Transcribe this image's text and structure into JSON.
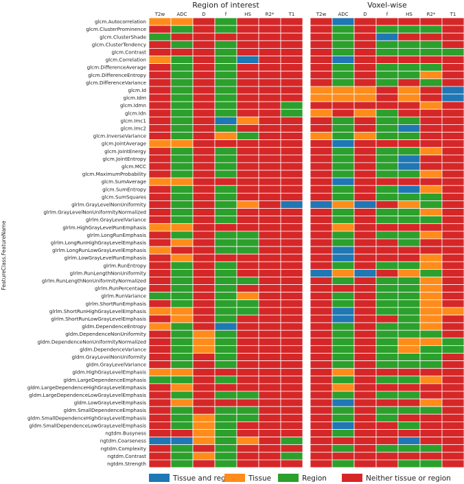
{
  "chart_data": {
    "type": "heatmap",
    "ylabel": "FeatureClass.FeatureName",
    "panels": [
      {
        "title": "Region of interest",
        "columns": [
          "T2w",
          "ADC",
          "D",
          "f",
          "HS",
          "R2*",
          "T1"
        ]
      },
      {
        "title": "Voxel-wise",
        "columns": [
          "T2w",
          "ADC",
          "D",
          "f",
          "HS",
          "R2*",
          "T1"
        ]
      }
    ],
    "legend": [
      {
        "code": "B",
        "label": "Tissue and region",
        "color": "#1f77b4"
      },
      {
        "code": "O",
        "label": "Tissue",
        "color": "#ff8c1a"
      },
      {
        "code": "G",
        "label": "Region",
        "color": "#2ca02c"
      },
      {
        "code": "R",
        "label": "Neither tissue or region",
        "color": "#d62728"
      }
    ],
    "rows": [
      {
        "feature": "glcm.Autocorrelation",
        "roi": "OORGRRR",
        "voxel": "RBRRRRR"
      },
      {
        "feature": "glcm.ClusterProminence",
        "roi": "RGRGRRR",
        "voxel": "RGRGGGR"
      },
      {
        "feature": "glcm.ClusterShade",
        "roi": "GRRRRRR",
        "voxel": "RGRBRRR"
      },
      {
        "feature": "glcm.ClusterTendency",
        "roi": "RGRGRRR",
        "voxel": "RGRGGGR"
      },
      {
        "feature": "glcm.Contrast",
        "roi": "RRRGRRR",
        "voxel": "RGRGGGG"
      },
      {
        "feature": "glcm.Correlation",
        "roi": "OGRGBRR",
        "voxel": "RBRRRRR"
      },
      {
        "feature": "glcm.DifferenceAverage",
        "roi": "RGRGRRR",
        "voxel": "RGRGGGR"
      },
      {
        "feature": "glcm.DifferenceEntropy",
        "roi": "RGRGRRR",
        "voxel": "RGRGGOR"
      },
      {
        "feature": "glcm.DifferenceVariance",
        "roi": "RGRGRRR",
        "voxel": "RGRGRGR"
      },
      {
        "feature": "glcm.Id",
        "roi": "RGRGRRR",
        "voxel": "OOORORB"
      },
      {
        "feature": "glcm.Idm",
        "roi": "RGRGRRR",
        "voxel": "OOORORB"
      },
      {
        "feature": "glcm.Idmn",
        "roi": "RGRGRRG",
        "voxel": "RRRRROR"
      },
      {
        "feature": "glcm.Idn",
        "roi": "RGRGRRG",
        "voxel": "OROGRRR"
      },
      {
        "feature": "glcm.Imc1",
        "roi": "RGRBORR",
        "voxel": "RGRGGRR"
      },
      {
        "feature": "glcm.Imc2",
        "roi": "RGRGRRR",
        "voxel": "RGRGBRR"
      },
      {
        "feature": "glcm.InverseVariance",
        "roi": "RGROGRR",
        "voxel": "OGOGGRR"
      },
      {
        "feature": "glcm.JointAverage",
        "roi": "OORRRRR",
        "voxel": "RBRRRRR"
      },
      {
        "feature": "glcm.JointEnergy",
        "roi": "RGRGRRR",
        "voxel": "RGRGGOR"
      },
      {
        "feature": "glcm.JointEntropy",
        "roi": "RGRGRRR",
        "voxel": "RGRGBRR"
      },
      {
        "feature": "glcm.MCC",
        "roi": "RGRGRRR",
        "voxel": "RGRGBRR"
      },
      {
        "feature": "glcm.MaximumProbability",
        "roi": "RGRGRRR",
        "voxel": "RGRGGOR"
      },
      {
        "feature": "glcm.SumAverage",
        "roi": "OORRRRR",
        "voxel": "RBRRRRR"
      },
      {
        "feature": "glcm.SumEntropy",
        "roi": "RGRGRRR",
        "voxel": "RGRGBOR"
      },
      {
        "feature": "glcm.SumSquares",
        "roi": "RGRGRRR",
        "voxel": "RGRGGGR"
      },
      {
        "feature": "glrlm.GrayLevelNonUniformity",
        "roi": "RGRGORB",
        "voxel": "BOBROGR"
      },
      {
        "feature": "glrlm.GrayLevelNonUniformityNormalized",
        "roi": "RGRGRRR",
        "voxel": "RGRGGOR"
      },
      {
        "feature": "glrlm.GrayLevelVariance",
        "roi": "RGRGRRR",
        "voxel": "RGRGGGR"
      },
      {
        "feature": "glrlm.HighGrayLevelRunEmphasis",
        "roi": "OORRRRR",
        "voxel": "RORRRRR"
      },
      {
        "feature": "glrlm.LongRunEmphasis",
        "roi": "RGRGGRR",
        "voxel": "RGRGGOR"
      },
      {
        "feature": "glrlm.LongRunHighGrayLevelEmphasis",
        "roi": "RORGGRR",
        "voxel": "RGRRGRR"
      },
      {
        "feature": "glrlm.LongRunLowGrayLevelEmphasis",
        "roi": "ORRGGRR",
        "voxel": "RBRRRRR"
      },
      {
        "feature": "glrlm.LowGrayLevelRunEmphasis",
        "roi": "RORRRRR",
        "voxel": "RBRRROR"
      },
      {
        "feature": "glrlm.RunEntropy",
        "roi": "RGRGRRR",
        "voxel": "RGRGGOR"
      },
      {
        "feature": "glrlm.RunLengthNonUniformity",
        "roi": "RGRGRRR",
        "voxel": "BOBROGR"
      },
      {
        "feature": "glrlm.RunLengthNonUniformityNormalized",
        "roi": "RGRGGRR",
        "voxel": "RGRGGOR"
      },
      {
        "feature": "glrlm.RunPercentage",
        "roi": "RGRGRRR",
        "voxel": "RRRGGOR"
      },
      {
        "feature": "glrlm.RunVariance",
        "roi": "GGRGORR",
        "voxel": "RGRGGOR"
      },
      {
        "feature": "glrlm.ShortRunEmphasis",
        "roi": "RGRGGRR",
        "voxel": "RGRGGOR"
      },
      {
        "feature": "glrlm.ShortRunHighGrayLevelEmphasis",
        "roi": "OORGGRR",
        "voxel": "RBRGGOO"
      },
      {
        "feature": "glrlm.ShortRunLowGrayLevelEmphasis",
        "roi": "RORGRRR",
        "voxel": "RBRRGOR"
      },
      {
        "feature": "gldm.DependenceEntropy",
        "roi": "OGRBRRR",
        "voxel": "RGRGGOR"
      },
      {
        "feature": "gldm.DependenceNonUniformity",
        "roi": "RGOGRRR",
        "voxel": "RGRGGGR"
      },
      {
        "feature": "gldm.DependenceNonUniformityNormalized",
        "roi": "RGOGRRR",
        "voxel": "RGRGOOG"
      },
      {
        "feature": "gldm.DependenceVariance",
        "roi": "RGOGRRR",
        "voxel": "RGRGOGG"
      },
      {
        "feature": "gldm.GrayLevelNonUniformity",
        "roi": "RGRGRRR",
        "voxel": "RGRGGGR"
      },
      {
        "feature": "gldm.GrayLevelVariance",
        "roi": "RGRGRRR",
        "voxel": "RGRGGGR"
      },
      {
        "feature": "gldm.HighGrayLevelEmphasis",
        "roi": "OORRRRR",
        "voxel": "RORRRRR"
      },
      {
        "feature": "gldm.LargeDependenceEmphasis",
        "roi": "GGRGRRR",
        "voxel": "RGRGGOR"
      },
      {
        "feature": "gldm.LargeDependenceHighGrayLevelEmphasis",
        "roi": "RORRRRR",
        "voxel": "RORRRRR"
      },
      {
        "feature": "gldm.LargeDependenceLowGrayLevelEmphasis",
        "roi": "RGRGGRR",
        "voxel": "RGRGGRR"
      },
      {
        "feature": "gldm.LowGrayLevelEmphasis",
        "roi": "RORRRRR",
        "voxel": "RBRRROR"
      },
      {
        "feature": "gldm.SmallDependenceEmphasis",
        "roi": "RGRGGRR",
        "voxel": "RGRGGGR"
      },
      {
        "feature": "gldm.SmallDependenceHighGrayLevelEmphasis",
        "roi": "RGOGGRR",
        "voxel": "RGRGRRR"
      },
      {
        "feature": "gldm.SmallDependenceLowGrayLevelEmphasis",
        "roi": "RGOGRRR",
        "voxel": "RBRRGRR"
      },
      {
        "feature": "ngtdm.Busyness",
        "roi": "RROGRRR",
        "voxel": "RGRRRRR"
      },
      {
        "feature": "ngtdm.Coarseness",
        "roi": "BBOGORG",
        "voxel": "RRRRBRR"
      },
      {
        "feature": "ngtdm.Complexity",
        "roi": "RGRGRRR",
        "voxel": "RGRGGGR"
      },
      {
        "feature": "ngtdm.Contrast",
        "roi": "RGOGRRG",
        "voxel": "RRRRRRR"
      },
      {
        "feature": "ngtdm.Strength",
        "roi": "RGRGRRR",
        "voxel": "RGRRGGR"
      }
    ]
  }
}
